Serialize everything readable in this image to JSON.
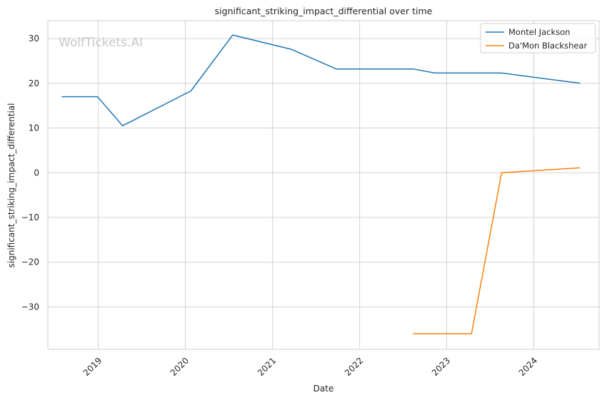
{
  "chart_data": {
    "type": "line",
    "title": "significant_striking_impact_differential over time",
    "xlabel": "Date",
    "ylabel": "significant_striking_impact_differential",
    "watermark": "WolfTickets.AI",
    "x_ticks": [
      "2019",
      "2020",
      "2021",
      "2022",
      "2023",
      "2024"
    ],
    "y_ticks": [
      "30",
      "20",
      "10",
      "0",
      "−10",
      "−20",
      "−30"
    ],
    "xlim": [
      "2018-06-04",
      "2024-10-01"
    ],
    "ylim": [
      -39.5,
      34.0
    ],
    "grid": true,
    "legend_position": "top-right",
    "series": [
      {
        "name": "Montel Jackson",
        "color": "#1f77b4",
        "points": [
          [
            "2018-08-01",
            17.0
          ],
          [
            "2018-12-29",
            17.0
          ],
          [
            "2019-04-13",
            10.5
          ],
          [
            "2020-01-25",
            18.3
          ],
          [
            "2020-07-18",
            30.8
          ],
          [
            "2021-03-20",
            27.6
          ],
          [
            "2021-09-25",
            23.2
          ],
          [
            "2022-08-13",
            23.2
          ],
          [
            "2022-11-12",
            22.3
          ],
          [
            "2023-04-01",
            22.3
          ],
          [
            "2023-08-19",
            22.3
          ],
          [
            "2024-07-13",
            20.0
          ]
        ]
      },
      {
        "name": "Da'Mon Blackshear",
        "color": "#ff7f0e",
        "points": [
          [
            "2022-08-13",
            -36.0
          ],
          [
            "2023-04-15",
            -36.0
          ],
          [
            "2023-08-19",
            0.0
          ],
          [
            "2024-07-13",
            1.1
          ]
        ]
      }
    ]
  }
}
